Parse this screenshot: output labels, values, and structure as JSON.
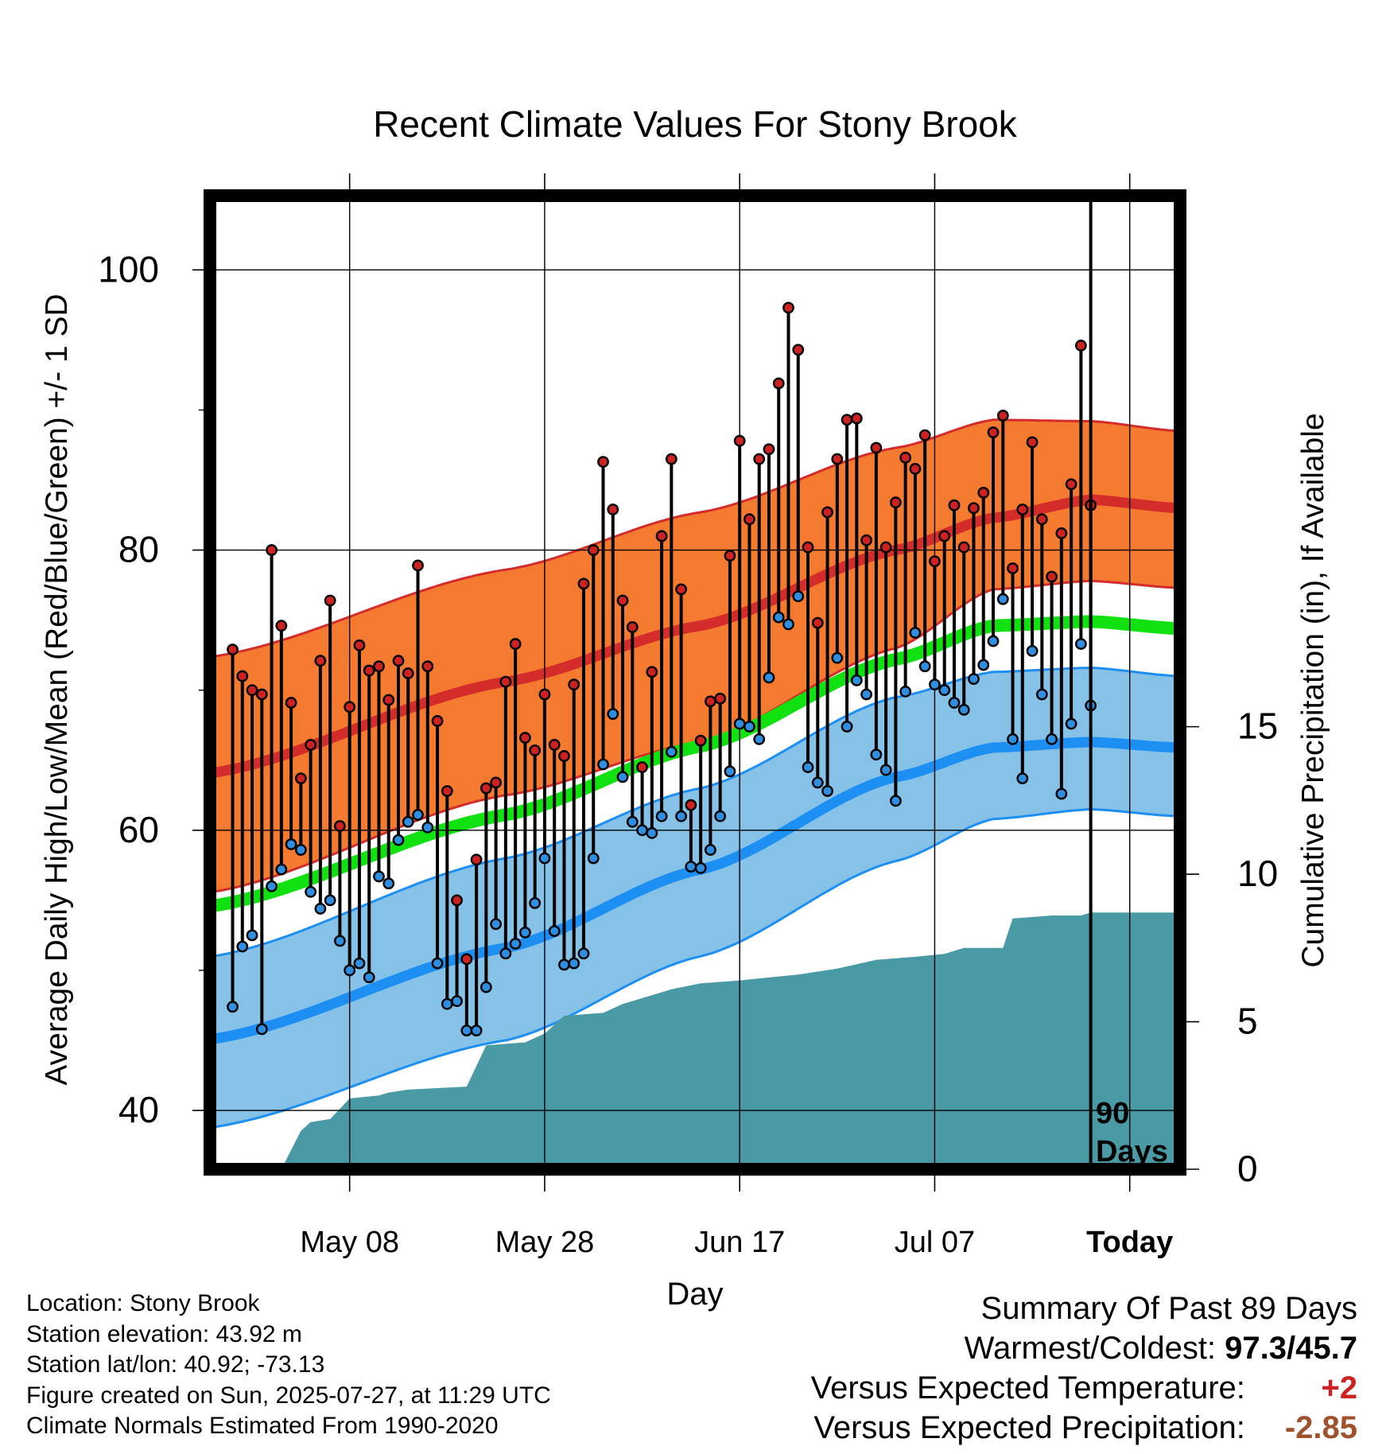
{
  "chart_data": {
    "type": "line",
    "title": "Recent Climate Values For Stony Brook",
    "xlabel": "Day",
    "ylabel_left": "Average Daily High/Low/Mean (Red/Blue/Green) +/- 1 SD",
    "ylabel_right": "Cumulative Precipitation (in), If Available",
    "x_tick_labels": [
      "May 08",
      "May 28",
      "Jun 17",
      "Jul 07",
      "Today"
    ],
    "y_left_ticks": [
      "40",
      "60",
      "80",
      "100"
    ],
    "y_right_ticks": [
      "0",
      "5",
      "10",
      "15"
    ],
    "ylim_left": [
      35.8,
      105.3
    ],
    "ylim_right": [
      0,
      33
    ],
    "days_label_line1": "90",
    "days_label_line2": "Days",
    "x_domain_days_relative_to_today": [
      -90,
      9
    ],
    "normal_high": [
      {
        "x": -90,
        "y": 64.1
      },
      {
        "x": -60,
        "y": 70.6
      },
      {
        "x": -40,
        "y": 74.6
      },
      {
        "x": -20,
        "y": 80.0
      },
      {
        "x": -10,
        "y": 82.3
      },
      {
        "x": 0,
        "y": 83.6
      },
      {
        "x": 9,
        "y": 83.0
      }
    ],
    "normal_high_plus_sd": [
      {
        "x": -90,
        "y": 72.4
      },
      {
        "x": -60,
        "y": 78.6
      },
      {
        "x": -40,
        "y": 82.7
      },
      {
        "x": -20,
        "y": 87.3
      },
      {
        "x": -10,
        "y": 89.3
      },
      {
        "x": 0,
        "y": 89.2
      },
      {
        "x": 9,
        "y": 88.5
      }
    ],
    "normal_high_minus_sd": [
      {
        "x": -90,
        "y": 55.6
      },
      {
        "x": -60,
        "y": 62.5
      },
      {
        "x": -40,
        "y": 66.3
      },
      {
        "x": -20,
        "y": 73.0
      },
      {
        "x": -10,
        "y": 77.2
      },
      {
        "x": 0,
        "y": 77.8
      },
      {
        "x": 9,
        "y": 77.3
      }
    ],
    "normal_mean": [
      {
        "x": -90,
        "y": 54.6
      },
      {
        "x": -60,
        "y": 61.1
      },
      {
        "x": -40,
        "y": 66.0
      },
      {
        "x": -20,
        "y": 72.2
      },
      {
        "x": -10,
        "y": 74.6
      },
      {
        "x": 0,
        "y": 74.9
      },
      {
        "x": 9,
        "y": 74.4
      }
    ],
    "normal_low": [
      {
        "x": -90,
        "y": 45.1
      },
      {
        "x": -60,
        "y": 51.6
      },
      {
        "x": -40,
        "y": 57.2
      },
      {
        "x": -20,
        "y": 63.8
      },
      {
        "x": -10,
        "y": 65.9
      },
      {
        "x": 0,
        "y": 66.3
      },
      {
        "x": 9,
        "y": 65.9
      }
    ],
    "normal_low_plus_sd": [
      {
        "x": -90,
        "y": 51.0
      },
      {
        "x": -60,
        "y": 58.0
      },
      {
        "x": -40,
        "y": 63.0
      },
      {
        "x": -20,
        "y": 69.5
      },
      {
        "x": -10,
        "y": 71.3
      },
      {
        "x": 0,
        "y": 71.6
      },
      {
        "x": 9,
        "y": 71.0
      }
    ],
    "normal_low_minus_sd": [
      {
        "x": -90,
        "y": 38.8
      },
      {
        "x": -60,
        "y": 45.0
      },
      {
        "x": -40,
        "y": 51.0
      },
      {
        "x": -20,
        "y": 57.8
      },
      {
        "x": -10,
        "y": 60.8
      },
      {
        "x": 0,
        "y": 61.5
      },
      {
        "x": 9,
        "y": 61.0
      }
    ],
    "daily_high": [
      72.9,
      71.0,
      70.0,
      69.7,
      80.0,
      74.6,
      69.1,
      63.7,
      66.1,
      72.1,
      76.4,
      60.3,
      68.8,
      73.2,
      71.4,
      71.7,
      69.3,
      72.1,
      71.2,
      78.9,
      71.7,
      67.8,
      62.8,
      55.0,
      50.8,
      57.9,
      63.0,
      63.4,
      70.6,
      73.3,
      66.6,
      65.7,
      69.7,
      66.1,
      65.3,
      70.4,
      77.6,
      80.0,
      86.3,
      82.9,
      76.4,
      74.5,
      64.5,
      71.3,
      81.0,
      86.5,
      77.2,
      61.8,
      66.4,
      69.2,
      69.4,
      79.6,
      87.8,
      82.2,
      86.5,
      87.2,
      91.9,
      97.3,
      94.3,
      80.2,
      74.8,
      82.7,
      86.5,
      89.3,
      89.4,
      80.7,
      87.3,
      80.2,
      83.4,
      86.6,
      85.8,
      88.2,
      79.2,
      81.0,
      83.2,
      80.2,
      83.0,
      84.1,
      88.4,
      89.6,
      78.7,
      82.9,
      87.7,
      82.2,
      78.1,
      81.2,
      84.7,
      94.6,
      83.2
    ],
    "daily_low": [
      47.4,
      51.7,
      52.5,
      45.8,
      56.0,
      57.2,
      59.0,
      58.6,
      55.6,
      54.4,
      55.0,
      52.1,
      50.0,
      50.5,
      49.5,
      56.7,
      56.2,
      59.3,
      60.6,
      61.1,
      60.2,
      50.5,
      47.6,
      47.8,
      45.7,
      45.7,
      48.8,
      53.3,
      51.2,
      51.9,
      52.7,
      54.8,
      58.0,
      52.8,
      50.4,
      50.5,
      51.2,
      58.0,
      64.7,
      68.3,
      63.8,
      60.6,
      60.0,
      59.8,
      61.0,
      65.6,
      61.0,
      57.4,
      57.3,
      58.6,
      61.0,
      64.2,
      67.6,
      67.4,
      66.5,
      70.9,
      75.2,
      74.7,
      76.7,
      64.5,
      63.4,
      62.8,
      72.3,
      67.4,
      70.7,
      69.7,
      65.4,
      64.3,
      62.1,
      69.9,
      74.1,
      71.7,
      70.4,
      70.0,
      69.1,
      68.6,
      70.8,
      71.8,
      73.5,
      76.5,
      66.5,
      63.7,
      72.8,
      69.7,
      66.5,
      62.6,
      67.6,
      73.3,
      68.9
    ],
    "precip_cumulative": [
      {
        "x": -83,
        "y": 0.0
      },
      {
        "x": -81,
        "y": 1.3
      },
      {
        "x": -80,
        "y": 1.6
      },
      {
        "x": -78,
        "y": 1.7
      },
      {
        "x": -76,
        "y": 2.4
      },
      {
        "x": -73,
        "y": 2.5
      },
      {
        "x": -72,
        "y": 2.6
      },
      {
        "x": -70,
        "y": 2.7
      },
      {
        "x": -64,
        "y": 2.8
      },
      {
        "x": -63,
        "y": 3.5
      },
      {
        "x": -62,
        "y": 4.2
      },
      {
        "x": -58,
        "y": 4.3
      },
      {
        "x": -56,
        "y": 4.6
      },
      {
        "x": -54,
        "y": 5.2
      },
      {
        "x": -50,
        "y": 5.3
      },
      {
        "x": -48,
        "y": 5.6
      },
      {
        "x": -46,
        "y": 5.8
      },
      {
        "x": -43,
        "y": 6.1
      },
      {
        "x": -40,
        "y": 6.3
      },
      {
        "x": -36,
        "y": 6.4
      },
      {
        "x": -33,
        "y": 6.5
      },
      {
        "x": -30,
        "y": 6.6
      },
      {
        "x": -26,
        "y": 6.8
      },
      {
        "x": -22,
        "y": 7.1
      },
      {
        "x": -18,
        "y": 7.2
      },
      {
        "x": -15,
        "y": 7.3
      },
      {
        "x": -13,
        "y": 7.5
      },
      {
        "x": -9,
        "y": 7.5
      },
      {
        "x": -8,
        "y": 8.5
      },
      {
        "x": -4,
        "y": 8.6
      },
      {
        "x": -1,
        "y": 8.6
      },
      {
        "x": 0,
        "y": 8.7
      },
      {
        "x": 9,
        "y": 8.7
      }
    ]
  },
  "footer": {
    "location": "Location: Stony Brook",
    "elevation": "Station elevation: 43.92 m",
    "latlon": "Station lat/lon: 40.92; -73.13",
    "created": "Figure created on Sun, 2025-07-27, at 11:29 UTC",
    "normals": "Climate Normals Estimated From 1990-2020"
  },
  "summary": {
    "title": "Summary Of Past 89 Days",
    "warm_cold_label": "Warmest/Coldest:",
    "warm_cold_value": "97.3/45.7",
    "temp_label": "Versus Expected Temperature:",
    "temp_value": "+2",
    "precip_label": "Versus Expected Precipitation:",
    "precip_value": "-2.85"
  },
  "colors": {
    "high_band": "#f47a30",
    "high_line": "#d42b2b",
    "mean_line": "#11e011",
    "low_band": "#86c2e8",
    "low_line": "#1e8ff2",
    "precip": "#4a9aa5",
    "high_dot": "#cc2222",
    "low_dot": "#2f8ee0",
    "deviation_temp": "#cc2222",
    "deviation_precip": "#a0522d"
  }
}
